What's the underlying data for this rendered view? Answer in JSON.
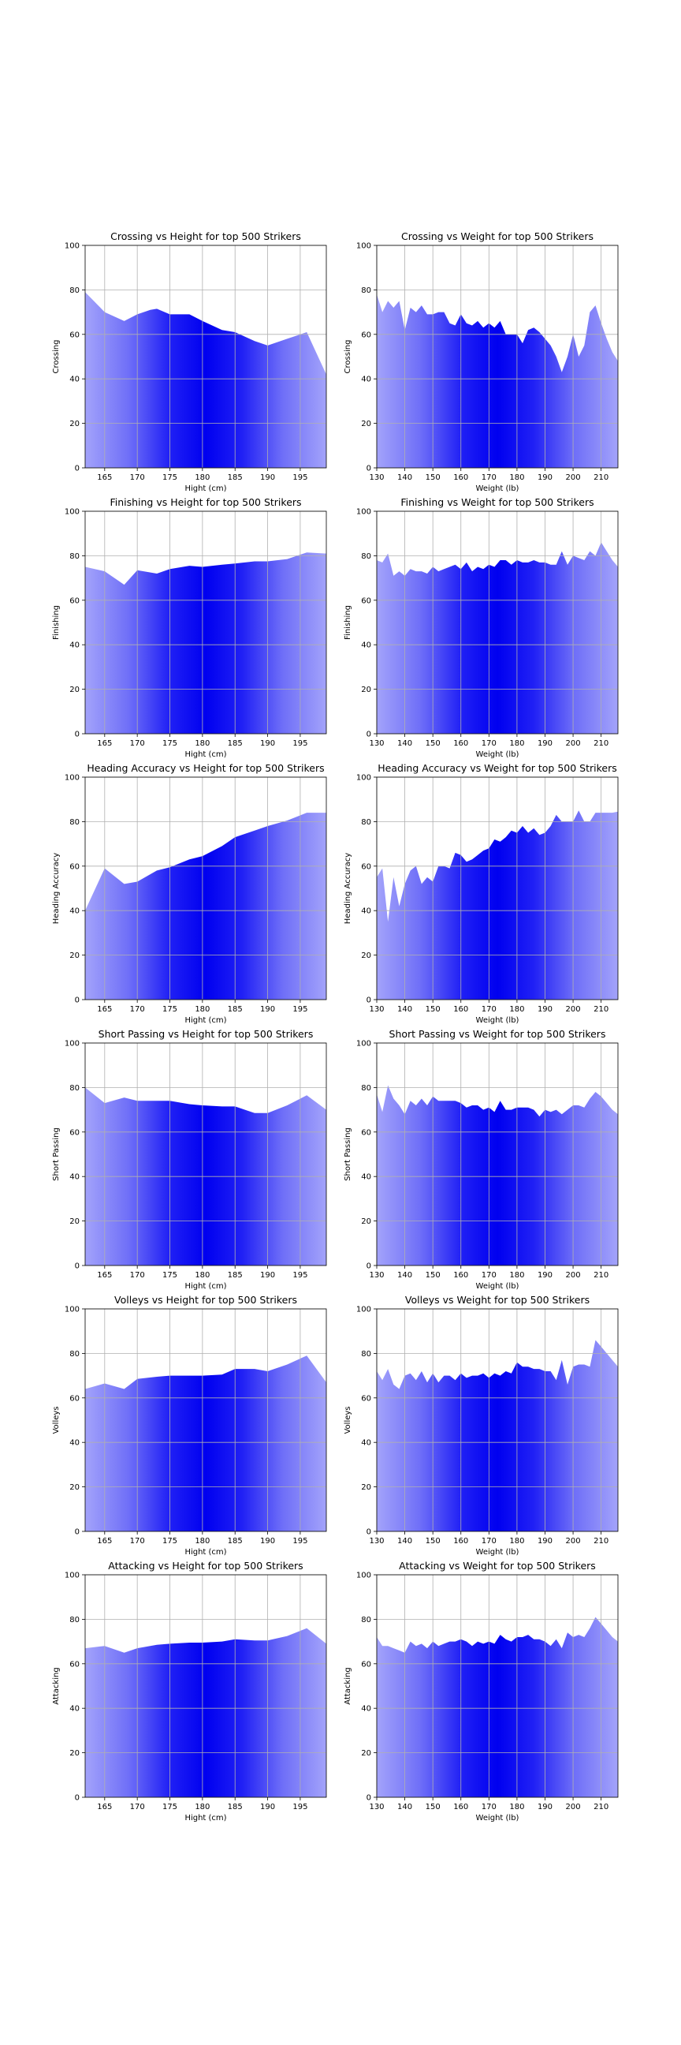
{
  "chart_data": [
    {
      "type": "area",
      "title": "Crossing vs Height for top 500 Strikers",
      "xlabel": "Hight (cm)",
      "ylabel": "Crossing",
      "xlim": [
        162,
        199
      ],
      "ylim": [
        0,
        100
      ],
      "xticks": [
        "165",
        "170",
        "175",
        "180",
        "185",
        "190",
        "195"
      ],
      "yticks": [
        "0",
        "20",
        "40",
        "60",
        "80",
        "100"
      ],
      "grid": true,
      "x": [
        162,
        165,
        168,
        170,
        172,
        173,
        175,
        178,
        180,
        183,
        185,
        188,
        190,
        193,
        196,
        199
      ],
      "values": [
        79,
        70,
        66,
        69,
        71,
        71.5,
        69,
        69,
        66,
        62,
        61,
        57,
        55,
        58,
        61,
        42
      ]
    },
    {
      "type": "area",
      "title": "Crossing vs Weight for top 500 Strikers",
      "xlabel": "Weight (lb)",
      "ylabel": "Crossing",
      "xlim": [
        130,
        216
      ],
      "ylim": [
        0,
        100
      ],
      "xticks": [
        "130",
        "140",
        "150",
        "160",
        "170",
        "180",
        "190",
        "200",
        "210"
      ],
      "yticks": [
        "0",
        "20",
        "40",
        "60",
        "80",
        "100"
      ],
      "grid": true,
      "x": [
        130,
        132,
        134,
        136,
        138,
        140,
        142,
        144,
        146,
        148,
        150,
        152,
        154,
        156,
        158,
        160,
        162,
        164,
        166,
        168,
        170,
        172,
        174,
        176,
        178,
        180,
        182,
        184,
        186,
        188,
        190,
        192,
        194,
        196,
        198,
        200,
        202,
        204,
        206,
        208,
        210,
        212,
        214,
        216
      ],
      "values": [
        78,
        70,
        75,
        72,
        75,
        62,
        72,
        70,
        73,
        69,
        69,
        70,
        70,
        65,
        64,
        69,
        65,
        64,
        66,
        63,
        65,
        63,
        66,
        60,
        60,
        60,
        56,
        62,
        63,
        61,
        58,
        55,
        50,
        43,
        50,
        60,
        50,
        55,
        70,
        73,
        65,
        58,
        52,
        48
      ]
    },
    {
      "type": "area",
      "title": "Finishing vs Height for top 500 Strikers",
      "xlabel": "Hight (cm)",
      "ylabel": "Finishing",
      "xlim": [
        162,
        199
      ],
      "ylim": [
        0,
        100
      ],
      "xticks": [
        "165",
        "170",
        "175",
        "180",
        "185",
        "190",
        "195"
      ],
      "yticks": [
        "0",
        "20",
        "40",
        "60",
        "80",
        "100"
      ],
      "grid": true,
      "x": [
        162,
        165,
        168,
        170,
        173,
        175,
        178,
        180,
        183,
        185,
        188,
        190,
        193,
        196,
        199
      ],
      "values": [
        75,
        73,
        67,
        73.5,
        72,
        74,
        75.5,
        75,
        76,
        76.5,
        77.5,
        77.5,
        78.5,
        81.5,
        81
      ]
    },
    {
      "type": "area",
      "title": "Finishing vs Weight for top 500 Strikers",
      "xlabel": "Weight (lb)",
      "ylabel": "Finishing",
      "xlim": [
        130,
        216
      ],
      "ylim": [
        0,
        100
      ],
      "xticks": [
        "130",
        "140",
        "150",
        "160",
        "170",
        "180",
        "190",
        "200",
        "210"
      ],
      "yticks": [
        "0",
        "20",
        "40",
        "60",
        "80",
        "100"
      ],
      "grid": true,
      "x": [
        130,
        132,
        134,
        136,
        138,
        140,
        142,
        144,
        146,
        148,
        150,
        152,
        154,
        156,
        158,
        160,
        162,
        164,
        166,
        168,
        170,
        172,
        174,
        176,
        178,
        180,
        182,
        184,
        186,
        188,
        190,
        192,
        194,
        196,
        198,
        200,
        202,
        204,
        206,
        208,
        210,
        212,
        214,
        216
      ],
      "values": [
        78,
        77,
        81,
        71,
        73,
        71,
        74,
        73,
        73,
        72,
        75,
        73,
        74,
        75,
        76,
        74,
        77,
        73,
        75,
        74,
        76,
        75,
        78,
        78,
        76,
        78,
        77,
        77,
        78,
        77,
        77,
        76,
        76,
        82,
        76,
        80,
        79,
        78,
        82,
        80,
        86,
        82,
        78,
        75
      ]
    },
    {
      "type": "area",
      "title": "Heading Accuracy vs Height for top 500 Strikers",
      "xlabel": "Hight (cm)",
      "ylabel": "Heading Accuracy",
      "xlim": [
        162,
        199
      ],
      "ylim": [
        0,
        100
      ],
      "xticks": [
        "165",
        "170",
        "175",
        "180",
        "185",
        "190",
        "195"
      ],
      "yticks": [
        "0",
        "20",
        "40",
        "60",
        "80",
        "100"
      ],
      "grid": true,
      "x": [
        162,
        165,
        168,
        170,
        173,
        175,
        178,
        180,
        183,
        185,
        188,
        190,
        193,
        196,
        199
      ],
      "values": [
        40,
        59,
        52,
        53,
        58,
        59.5,
        63,
        64.5,
        69,
        73,
        76,
        78,
        80.5,
        84,
        84
      ]
    },
    {
      "type": "area",
      "title": "Heading Accuracy vs Weight for top 500 Strikers",
      "xlabel": "Weight (lb)",
      "ylabel": "Heading Accuracy",
      "xlim": [
        130,
        216
      ],
      "ylim": [
        0,
        100
      ],
      "xticks": [
        "130",
        "140",
        "150",
        "160",
        "170",
        "180",
        "190",
        "200",
        "210"
      ],
      "yticks": [
        "0",
        "20",
        "40",
        "60",
        "80",
        "100"
      ],
      "grid": true,
      "x": [
        130,
        132,
        134,
        136,
        138,
        140,
        142,
        144,
        146,
        148,
        150,
        152,
        154,
        156,
        158,
        160,
        162,
        164,
        166,
        168,
        170,
        172,
        174,
        176,
        178,
        180,
        182,
        184,
        186,
        188,
        190,
        192,
        194,
        196,
        198,
        200,
        202,
        204,
        206,
        208,
        210,
        212,
        214,
        216
      ],
      "values": [
        55,
        59,
        35,
        55,
        42,
        52,
        58,
        60,
        52,
        55,
        53,
        60,
        60,
        59,
        66,
        65,
        62,
        63,
        65,
        67,
        68,
        72,
        71,
        73,
        76,
        75,
        78,
        75,
        77,
        74,
        75,
        78,
        83,
        80,
        80,
        80,
        85,
        80,
        80,
        84,
        84,
        84,
        84,
        84.5
      ]
    },
    {
      "type": "area",
      "title": "Short Passing vs Height for top 500 Strikers",
      "xlabel": "Hight (cm)",
      "ylabel": "Short Passing",
      "xlim": [
        162,
        199
      ],
      "ylim": [
        0,
        100
      ],
      "xticks": [
        "165",
        "170",
        "175",
        "180",
        "185",
        "190",
        "195"
      ],
      "yticks": [
        "0",
        "20",
        "40",
        "60",
        "80",
        "100"
      ],
      "grid": true,
      "x": [
        162,
        165,
        168,
        170,
        173,
        175,
        178,
        180,
        183,
        185,
        188,
        190,
        193,
        196,
        199
      ],
      "values": [
        80,
        73,
        75.5,
        74,
        74,
        74,
        72.5,
        72,
        71.5,
        71.5,
        68.5,
        68.5,
        72,
        76.5,
        70
      ]
    },
    {
      "type": "area",
      "title": "Short Passing vs Weight for top 500 Strikers",
      "xlabel": "Weight (lb)",
      "ylabel": "Short Passing",
      "xlim": [
        130,
        216
      ],
      "ylim": [
        0,
        100
      ],
      "xticks": [
        "130",
        "140",
        "150",
        "160",
        "170",
        "180",
        "190",
        "200",
        "210"
      ],
      "yticks": [
        "0",
        "20",
        "40",
        "60",
        "80",
        "100"
      ],
      "grid": true,
      "x": [
        130,
        132,
        134,
        136,
        138,
        140,
        142,
        144,
        146,
        148,
        150,
        152,
        154,
        156,
        158,
        160,
        162,
        164,
        166,
        168,
        170,
        172,
        174,
        176,
        178,
        180,
        182,
        184,
        186,
        188,
        190,
        192,
        194,
        196,
        198,
        200,
        202,
        204,
        206,
        208,
        210,
        212,
        214,
        216
      ],
      "values": [
        77,
        69,
        81,
        75,
        72,
        68,
        74,
        72,
        75,
        72,
        76,
        74,
        74,
        74,
        74,
        73,
        71,
        72,
        72,
        70,
        71,
        69,
        74,
        70,
        70,
        71,
        71,
        71,
        70,
        67,
        70,
        69,
        70,
        68,
        70,
        72,
        72,
        71,
        75,
        78,
        76,
        73,
        70,
        68
      ]
    },
    {
      "type": "area",
      "title": "Volleys vs Height for top 500 Strikers",
      "xlabel": "Hight (cm)",
      "ylabel": "Volleys",
      "xlim": [
        162,
        199
      ],
      "ylim": [
        0,
        100
      ],
      "xticks": [
        "165",
        "170",
        "175",
        "180",
        "185",
        "190",
        "195"
      ],
      "yticks": [
        "0",
        "20",
        "40",
        "60",
        "80",
        "100"
      ],
      "grid": true,
      "x": [
        162,
        165,
        168,
        170,
        173,
        175,
        178,
        180,
        183,
        185,
        188,
        190,
        193,
        196,
        199
      ],
      "values": [
        64,
        66.5,
        64,
        68.5,
        69.5,
        70,
        70,
        70,
        70.5,
        73,
        73,
        72,
        75,
        79,
        67
      ]
    },
    {
      "type": "area",
      "title": "Volleys vs Weight for top 500 Strikers",
      "xlabel": "Weight (lb)",
      "ylabel": "Volleys",
      "xlim": [
        130,
        216
      ],
      "ylim": [
        0,
        100
      ],
      "xticks": [
        "130",
        "140",
        "150",
        "160",
        "170",
        "180",
        "190",
        "200",
        "210"
      ],
      "yticks": [
        "0",
        "20",
        "40",
        "60",
        "80",
        "100"
      ],
      "grid": true,
      "x": [
        130,
        132,
        134,
        136,
        138,
        140,
        142,
        144,
        146,
        148,
        150,
        152,
        154,
        156,
        158,
        160,
        162,
        164,
        166,
        168,
        170,
        172,
        174,
        176,
        178,
        180,
        182,
        184,
        186,
        188,
        190,
        192,
        194,
        196,
        198,
        200,
        202,
        204,
        206,
        208,
        210,
        212,
        214,
        216
      ],
      "values": [
        72,
        68,
        73,
        66,
        64,
        70,
        71,
        68,
        72,
        67,
        71,
        67,
        70,
        70,
        68,
        71,
        69,
        70,
        70,
        71,
        69,
        71,
        70,
        72,
        71,
        76,
        74,
        74,
        73,
        73,
        72,
        72,
        68,
        77,
        66,
        74,
        75,
        75,
        74,
        86,
        83,
        80,
        77,
        74
      ]
    },
    {
      "type": "area",
      "title": "Attacking vs Height for top 500 Strikers",
      "xlabel": "Hight (cm)",
      "ylabel": "Attacking",
      "xlim": [
        162,
        199
      ],
      "ylim": [
        0,
        100
      ],
      "xticks": [
        "165",
        "170",
        "175",
        "180",
        "185",
        "190",
        "195"
      ],
      "yticks": [
        "0",
        "20",
        "40",
        "60",
        "80",
        "100"
      ],
      "grid": true,
      "x": [
        162,
        165,
        168,
        170,
        173,
        175,
        178,
        180,
        183,
        185,
        188,
        190,
        193,
        196,
        199
      ],
      "values": [
        67,
        68,
        65,
        67,
        68.5,
        69,
        69.5,
        69.5,
        70,
        71,
        70.5,
        70.5,
        72.5,
        76,
        69
      ]
    },
    {
      "type": "area",
      "title": "Attacking vs Weight for top 500 Strikers",
      "xlabel": "Weight (lb)",
      "ylabel": "Attacking",
      "xlim": [
        130,
        216
      ],
      "ylim": [
        0,
        100
      ],
      "xticks": [
        "130",
        "140",
        "150",
        "160",
        "170",
        "180",
        "190",
        "200",
        "210"
      ],
      "yticks": [
        "0",
        "20",
        "40",
        "60",
        "80",
        "100"
      ],
      "grid": true,
      "x": [
        130,
        132,
        134,
        136,
        138,
        140,
        142,
        144,
        146,
        148,
        150,
        152,
        154,
        156,
        158,
        160,
        162,
        164,
        166,
        168,
        170,
        172,
        174,
        176,
        178,
        180,
        182,
        184,
        186,
        188,
        190,
        192,
        194,
        196,
        198,
        200,
        202,
        204,
        206,
        208,
        210,
        212,
        214,
        216
      ],
      "values": [
        72,
        68,
        68,
        67,
        66,
        65,
        70,
        68,
        69,
        67,
        70,
        68,
        69,
        70,
        70,
        71,
        70,
        68,
        70,
        69,
        70,
        69,
        73,
        71,
        70,
        72,
        72,
        73,
        71,
        71,
        70,
        68,
        71,
        67,
        74,
        72,
        73,
        72,
        76,
        81,
        78,
        75,
        72,
        70
      ]
    }
  ]
}
